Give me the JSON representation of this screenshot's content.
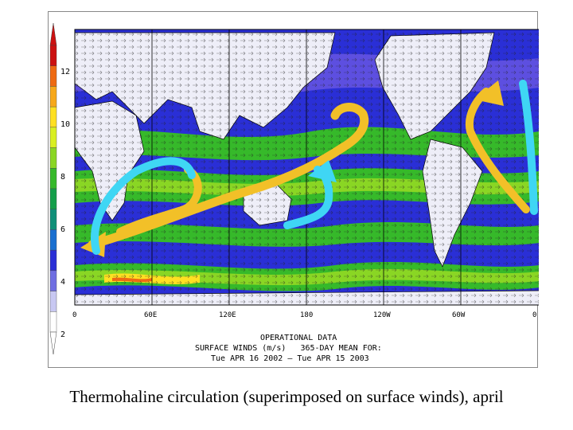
{
  "colorbar": {
    "ticks": [
      "12",
      "10",
      "8",
      "6",
      "4",
      "2"
    ],
    "colors": [
      "#cc1111",
      "#ee6a12",
      "#f7a81a",
      "#ffe022",
      "#d9ef22",
      "#8ad624",
      "#36b92a",
      "#149e4a",
      "#0f8f78",
      "#1a6fd0",
      "#2a2fd6",
      "#6f6ee2",
      "#c8c8f2",
      "#ffffff"
    ]
  },
  "map": {
    "lon_labels": [
      "0",
      "60E",
      "120E",
      "180",
      "120W",
      "60W",
      "0"
    ],
    "ocean_colors": {
      "low": "#5d4fe0",
      "mid": "#2a2fd6",
      "green": "#36b92a",
      "bright": "#8ad624",
      "yellow": "#ffe022",
      "land": "#eeeef8"
    },
    "arrow_colors": {
      "warm": "#f2c028",
      "cold": "#3fd6f4"
    }
  },
  "footer": {
    "line1": "OPERATIONAL DATA",
    "line2": "SURFACE WINDS (m/s)   365-DAY MEAN FOR:",
    "line3": "Tue APR 16 2002 – Tue APR 15 2003"
  },
  "caption": "Thermohaline circulation (superimposed on surface winds), april"
}
